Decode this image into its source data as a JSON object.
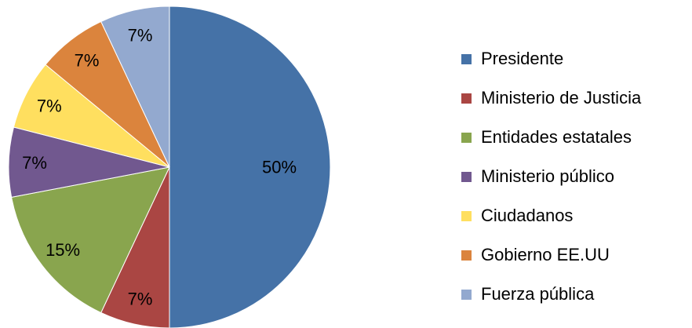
{
  "chart_data": {
    "type": "pie",
    "start": "12 o'clock",
    "direction": "clockwise",
    "legend_position": "right",
    "slices": [
      {
        "label": "Presidente",
        "value": 50,
        "value_label": "50%",
        "color": "#4572A7"
      },
      {
        "label": "Ministerio de Justicia",
        "value": 7,
        "value_label": "7%",
        "color": "#AA4643"
      },
      {
        "label": "Entidades estatales",
        "value": 15,
        "value_label": "15%",
        "color": "#89A54E"
      },
      {
        "label": "Ministerio público",
        "value": 7,
        "value_label": "7%",
        "color": "#71588F"
      },
      {
        "label": "Ciudadanos",
        "value": 7,
        "value_label": "7%",
        "color": "#FFDF5F"
      },
      {
        "label": "Gobierno EE.UU",
        "value": 7,
        "value_label": "7%",
        "color": "#DB843D"
      },
      {
        "label": "Fuerza pública",
        "value": 7,
        "value_label": "7%",
        "color": "#93A9CF"
      }
    ]
  }
}
